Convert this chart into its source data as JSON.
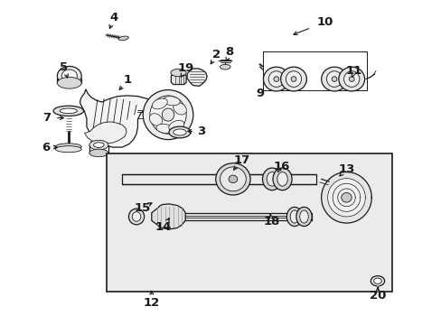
{
  "bg_color": "#ffffff",
  "line_color": "#1a1a1a",
  "gray_fill": "#e8e8e8",
  "dark_gray": "#aaaaaa",
  "figsize": [
    4.89,
    3.6
  ],
  "dpi": 100,
  "labels": {
    "1": [
      0.285,
      0.758,
      0.26,
      0.72
    ],
    "2": [
      0.49,
      0.838,
      0.472,
      0.8
    ],
    "3": [
      0.455,
      0.598,
      0.415,
      0.598
    ],
    "4": [
      0.253,
      0.955,
      0.24,
      0.91
    ],
    "5": [
      0.138,
      0.8,
      0.148,
      0.755
    ],
    "6": [
      0.095,
      0.548,
      0.13,
      0.548
    ],
    "7": [
      0.098,
      0.64,
      0.145,
      0.64
    ],
    "8": [
      0.52,
      0.848,
      0.51,
      0.808
    ],
    "9": [
      0.59,
      0.718,
      0.598,
      0.735
    ],
    "10": [
      0.74,
      0.94,
      0.66,
      0.898
    ],
    "11": [
      0.808,
      0.788,
      0.8,
      0.758
    ],
    "12": [
      0.34,
      0.058,
      0.34,
      0.108
    ],
    "13": [
      0.79,
      0.478,
      0.768,
      0.45
    ],
    "14": [
      0.368,
      0.298,
      0.385,
      0.335
    ],
    "15": [
      0.318,
      0.358,
      0.348,
      0.378
    ],
    "16": [
      0.64,
      0.488,
      0.63,
      0.468
    ],
    "17": [
      0.548,
      0.508,
      0.524,
      0.468
    ],
    "18": [
      0.618,
      0.315,
      0.612,
      0.348
    ],
    "19": [
      0.418,
      0.795,
      0.404,
      0.758
    ],
    "20": [
      0.862,
      0.082,
      0.862,
      0.118
    ]
  }
}
